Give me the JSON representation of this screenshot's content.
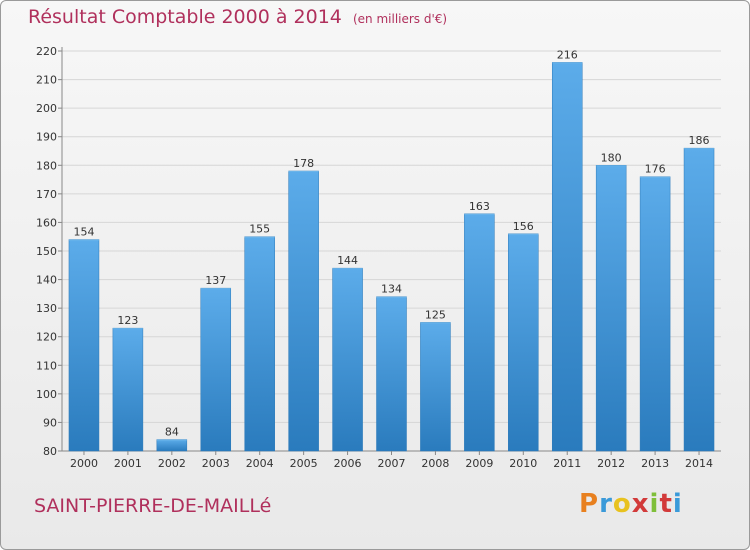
{
  "header": {
    "title": "Résultat Comptable 2000 à 2014",
    "unit": "(en milliers d'€)"
  },
  "footer": {
    "commune": "SAINT-PIERRE-DE-MAILLé",
    "logo_letters": [
      "P",
      "r",
      "o",
      "x",
      "i",
      "t",
      "i"
    ],
    "logo_colors": [
      "#e8801f",
      "#3a9ad9",
      "#e8c21f",
      "#d23a3a",
      "#7fbf3a",
      "#d23a3a",
      "#3a9ad9"
    ]
  },
  "colors": {
    "bar": "#3d95d5",
    "bar_dark": "#2a78b8",
    "bar_light": "#6ab4ea",
    "grid": "#d6d6d6",
    "text": "#333333",
    "accent": "#b0305c"
  },
  "chart_data": {
    "type": "bar",
    "categories": [
      "2000",
      "2001",
      "2002",
      "2003",
      "2004",
      "2005",
      "2006",
      "2007",
      "2008",
      "2009",
      "2010",
      "2011",
      "2012",
      "2013",
      "2014"
    ],
    "values": [
      154,
      123,
      84,
      137,
      155,
      178,
      144,
      134,
      125,
      163,
      156,
      216,
      180,
      176,
      186
    ],
    "ylim": [
      80,
      220
    ],
    "yticks": [
      80,
      90,
      100,
      110,
      120,
      130,
      140,
      150,
      160,
      170,
      180,
      190,
      200,
      210,
      220
    ],
    "grid": true,
    "data_labels": true
  }
}
